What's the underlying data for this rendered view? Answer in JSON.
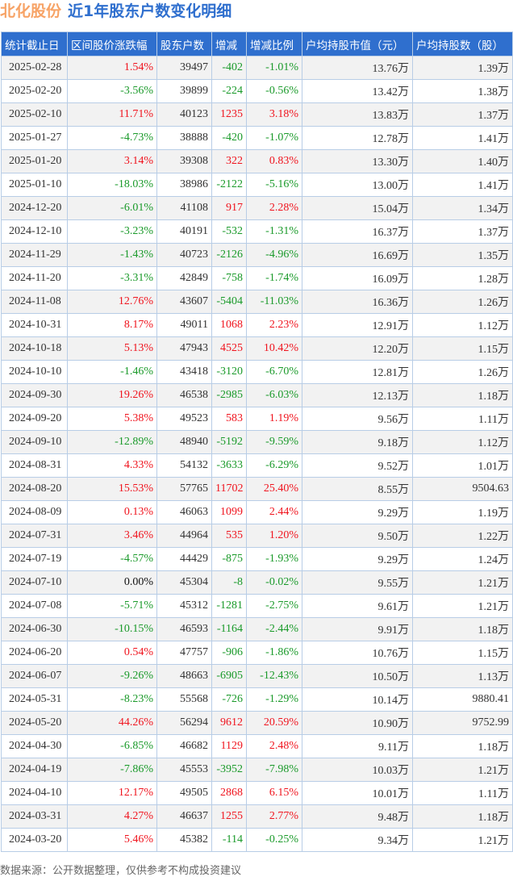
{
  "title": {
    "stock": "北化股份",
    "subtitle": "近1年股东户数变化明细"
  },
  "colors": {
    "header_bg": "#2f6fce",
    "up": "#f0141e",
    "down": "#1a9a2a",
    "stock_name": "#f7a366"
  },
  "table": {
    "columns": [
      "统计截止日",
      "区间股价涨跌幅",
      "股东户数",
      "增减",
      "增减比例",
      "户均持股市值（元）",
      "户均持股数（股）"
    ],
    "rows": [
      [
        "2025-02-28",
        "1.54%",
        "39497",
        "-402",
        "-1.01%",
        "13.76万",
        "1.39万"
      ],
      [
        "2025-02-20",
        "-3.56%",
        "39899",
        "-224",
        "-0.56%",
        "13.42万",
        "1.38万"
      ],
      [
        "2025-02-10",
        "11.71%",
        "40123",
        "1235",
        "3.18%",
        "13.83万",
        "1.37万"
      ],
      [
        "2025-01-27",
        "-4.73%",
        "38888",
        "-420",
        "-1.07%",
        "12.78万",
        "1.41万"
      ],
      [
        "2025-01-20",
        "3.14%",
        "39308",
        "322",
        "0.83%",
        "13.30万",
        "1.40万"
      ],
      [
        "2025-01-10",
        "-18.03%",
        "38986",
        "-2122",
        "-5.16%",
        "13.00万",
        "1.41万"
      ],
      [
        "2024-12-20",
        "-6.01%",
        "41108",
        "917",
        "2.28%",
        "15.04万",
        "1.34万"
      ],
      [
        "2024-12-10",
        "-3.23%",
        "40191",
        "-532",
        "-1.31%",
        "16.37万",
        "1.37万"
      ],
      [
        "2024-11-29",
        "-1.43%",
        "40723",
        "-2126",
        "-4.96%",
        "16.69万",
        "1.35万"
      ],
      [
        "2024-11-20",
        "-3.31%",
        "42849",
        "-758",
        "-1.74%",
        "16.09万",
        "1.28万"
      ],
      [
        "2024-11-08",
        "12.76%",
        "43607",
        "-5404",
        "-11.03%",
        "16.36万",
        "1.26万"
      ],
      [
        "2024-10-31",
        "8.17%",
        "49011",
        "1068",
        "2.23%",
        "12.91万",
        "1.12万"
      ],
      [
        "2024-10-18",
        "5.13%",
        "47943",
        "4525",
        "10.42%",
        "12.20万",
        "1.15万"
      ],
      [
        "2024-10-10",
        "-1.46%",
        "43418",
        "-3120",
        "-6.70%",
        "12.81万",
        "1.26万"
      ],
      [
        "2024-09-30",
        "19.26%",
        "46538",
        "-2985",
        "-6.03%",
        "12.13万",
        "1.18万"
      ],
      [
        "2024-09-20",
        "5.38%",
        "49523",
        "583",
        "1.19%",
        "9.56万",
        "1.11万"
      ],
      [
        "2024-09-10",
        "-12.89%",
        "48940",
        "-5192",
        "-9.59%",
        "9.18万",
        "1.12万"
      ],
      [
        "2024-08-31",
        "4.33%",
        "54132",
        "-3633",
        "-6.29%",
        "9.52万",
        "1.01万"
      ],
      [
        "2024-08-20",
        "15.53%",
        "57765",
        "11702",
        "25.40%",
        "8.55万",
        "9504.63"
      ],
      [
        "2024-08-09",
        "0.13%",
        "46063",
        "1099",
        "2.44%",
        "9.29万",
        "1.19万"
      ],
      [
        "2024-07-31",
        "3.46%",
        "44964",
        "535",
        "1.20%",
        "9.50万",
        "1.22万"
      ],
      [
        "2024-07-19",
        "-4.57%",
        "44429",
        "-875",
        "-1.93%",
        "9.29万",
        "1.24万"
      ],
      [
        "2024-07-10",
        "0.00%",
        "45304",
        "-8",
        "-0.02%",
        "9.55万",
        "1.21万"
      ],
      [
        "2024-07-08",
        "-5.71%",
        "45312",
        "-1281",
        "-2.75%",
        "9.61万",
        "1.21万"
      ],
      [
        "2024-06-30",
        "-10.15%",
        "46593",
        "-1164",
        "-2.44%",
        "9.91万",
        "1.18万"
      ],
      [
        "2024-06-20",
        "0.54%",
        "47757",
        "-906",
        "-1.86%",
        "10.76万",
        "1.15万"
      ],
      [
        "2024-06-07",
        "-9.26%",
        "48663",
        "-6905",
        "-12.43%",
        "10.50万",
        "1.13万"
      ],
      [
        "2024-05-31",
        "-8.23%",
        "55568",
        "-726",
        "-1.29%",
        "10.14万",
        "9880.41"
      ],
      [
        "2024-05-20",
        "44.26%",
        "56294",
        "9612",
        "20.59%",
        "10.90万",
        "9752.99"
      ],
      [
        "2024-04-30",
        "-6.85%",
        "46682",
        "1129",
        "2.48%",
        "9.11万",
        "1.18万"
      ],
      [
        "2024-04-19",
        "-7.86%",
        "45553",
        "-3952",
        "-7.98%",
        "10.03万",
        "1.21万"
      ],
      [
        "2024-04-10",
        "12.17%",
        "49505",
        "2868",
        "6.15%",
        "10.01万",
        "1.11万"
      ],
      [
        "2024-03-31",
        "4.27%",
        "46637",
        "1255",
        "2.77%",
        "9.48万",
        "1.18万"
      ],
      [
        "2024-03-20",
        "5.46%",
        "45382",
        "-114",
        "-0.25%",
        "9.34万",
        "1.21万"
      ]
    ]
  },
  "footer": "数据来源：公开数据整理，仅供参考不构成投资建议"
}
